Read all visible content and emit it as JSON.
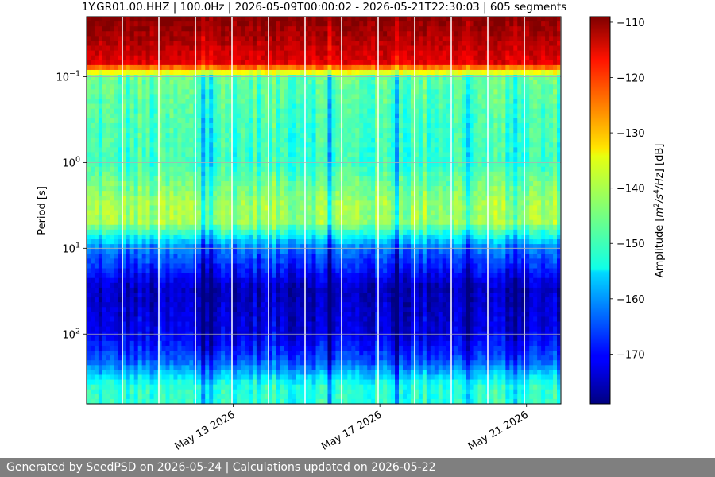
{
  "footer": {
    "text": "Generated by SeedPSD on 2026-05-24 | Calculations updated on 2026-05-22"
  },
  "chart_data": {
    "type": "heatmap",
    "title": "1Y.GR01.00.HHZ | 100.0Hz | 2026-05-09T00:00:02 - 2026-05-21T22:30:03 | 605 segments",
    "xlabel": "",
    "ylabel": "Period [s]",
    "x_ticks": [
      "May 13 2026",
      "May 17 2026",
      "May 21 2026"
    ],
    "x_tick_dates": [
      "2026-05-13",
      "2026-05-17",
      "2026-05-21"
    ],
    "xlim": [
      "2026-05-09T00:00:02",
      "2026-05-21T22:30:03"
    ],
    "yscale": "log",
    "y_inverted": true,
    "y_ticks": [
      {
        "value": 0.1,
        "base": "10",
        "exp": "−1"
      },
      {
        "value": 1,
        "base": "10",
        "exp": "0"
      },
      {
        "value": 10,
        "base": "10",
        "exp": "1"
      },
      {
        "value": 100,
        "base": "10",
        "exp": "2"
      }
    ],
    "ylim": [
      0.02,
      650
    ],
    "grid": true,
    "colormap": "jet",
    "colorbar": {
      "label_prefix": "Amplitude [",
      "label_m": "m",
      "label_exp1": "2",
      "label_slash": "/",
      "label_s": "s",
      "label_exp2": "4",
      "label_hz": "/Hz",
      "label_suffix": "] [dB]",
      "ticks": [
        "−110",
        "−120",
        "−130",
        "−140",
        "−150",
        "−160",
        "−170"
      ],
      "tick_values": [
        -110,
        -120,
        -130,
        -140,
        -150,
        -160,
        -170
      ],
      "range": [
        -179,
        -109
      ]
    },
    "amplitude_profile_db": [
      {
        "period": 0.02,
        "db": -109
      },
      {
        "period": 0.07,
        "db": -116
      },
      {
        "period": 0.1,
        "db": -146
      },
      {
        "period": 0.3,
        "db": -148
      },
      {
        "period": 1,
        "db": -149
      },
      {
        "period": 3,
        "db": -142
      },
      {
        "period": 5,
        "db": -142
      },
      {
        "period": 10,
        "db": -162
      },
      {
        "period": 30,
        "db": -175
      },
      {
        "period": 100,
        "db": -172
      },
      {
        "period": 200,
        "db": -165
      },
      {
        "period": 400,
        "db": -150
      }
    ]
  }
}
